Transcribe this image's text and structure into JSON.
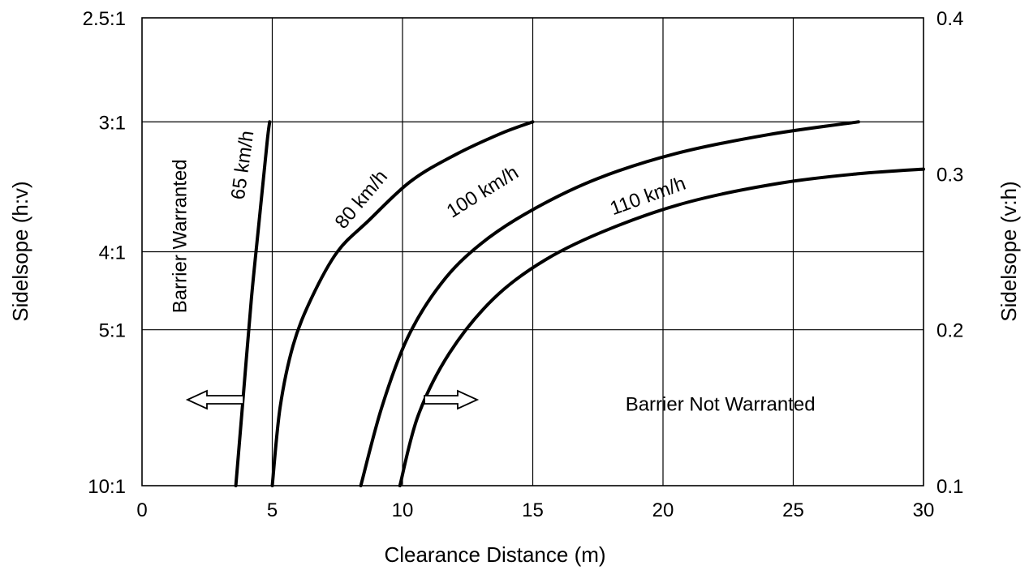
{
  "chart_data": {
    "type": "line",
    "xlabel": "Clearance Distance (m)",
    "ylabel_left": "Sidelsope (h:v)",
    "ylabel_right": "Sidelsope (v:h)",
    "xlim": [
      0,
      30
    ],
    "ylim": [
      0.1,
      0.4
    ],
    "grid": true,
    "x_ticks": [
      0,
      5,
      10,
      15,
      20,
      25,
      30
    ],
    "y_ticks_left": [
      {
        "value": 0.4,
        "label": "2.5:1"
      },
      {
        "value": 0.3333,
        "label": "3:1"
      },
      {
        "value": 0.25,
        "label": "4:1"
      },
      {
        "value": 0.2,
        "label": "5:1"
      },
      {
        "value": 0.1,
        "label": "10:1"
      }
    ],
    "y_ticks_right": [
      {
        "value": 0.4,
        "label": "0.4"
      },
      {
        "value": 0.3,
        "label": "0.3"
      },
      {
        "value": 0.2,
        "label": "0.2"
      },
      {
        "value": 0.1,
        "label": "0.1"
      }
    ],
    "series": [
      {
        "name": "65 km/h",
        "x": [
          3.6,
          3.9,
          4.2,
          4.5,
          4.8,
          4.9
        ],
        "y": [
          0.1,
          0.16,
          0.22,
          0.27,
          0.32,
          0.3333
        ]
      },
      {
        "name": "80 km/h",
        "x": [
          5.0,
          5.3,
          5.8,
          6.5,
          7.5,
          8.7,
          10.3,
          12.0,
          13.8,
          15.0
        ],
        "y": [
          0.1,
          0.15,
          0.19,
          0.22,
          0.25,
          0.27,
          0.295,
          0.312,
          0.326,
          0.3333
        ]
      },
      {
        "name": "100 km/h",
        "x": [
          8.4,
          9.2,
          10.2,
          11.5,
          13.0,
          15.0,
          17.5,
          20.5,
          24.0,
          27.5
        ],
        "y": [
          0.1,
          0.15,
          0.195,
          0.23,
          0.255,
          0.277,
          0.297,
          0.313,
          0.325,
          0.3333
        ]
      },
      {
        "name": "110 km/h",
        "x": [
          9.9,
          10.6,
          11.8,
          13.5,
          15.5,
          18.0,
          21.0,
          24.5,
          27.5,
          30.0
        ],
        "y": [
          0.1,
          0.145,
          0.185,
          0.22,
          0.245,
          0.265,
          0.282,
          0.294,
          0.3,
          0.303
        ]
      }
    ],
    "annotations": [
      {
        "text": "Barrier Warranted",
        "x": 1.7,
        "y": 0.26,
        "rotation": -90
      },
      {
        "text": "Barrier Not Warranted",
        "x": 22.2,
        "y": 0.148,
        "rotation": 0
      }
    ]
  }
}
